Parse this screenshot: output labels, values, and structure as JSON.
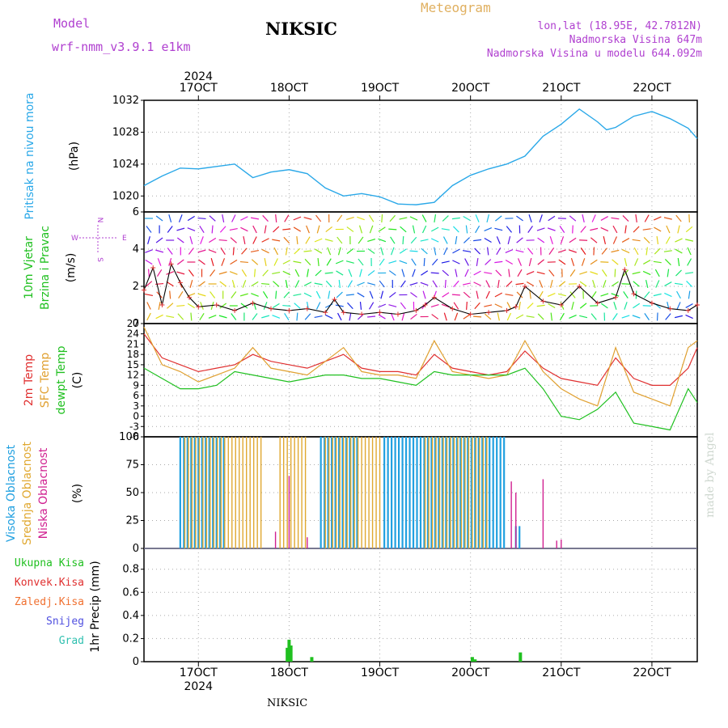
{
  "header": {
    "model_label": "Model",
    "model_name": "wrf-nmm_v3.9.1 e1km",
    "station": "NIKSIC",
    "meteogram": "Meteogram",
    "lonlat": "lon,lat (18.95E, 42.7812N)",
    "altitude": "Nadmorska Visina 647m",
    "altitude_model": "Nadmorska Visina u modelu 644.092m",
    "footer_station": "NIKSIC",
    "watermark": "made by Angel"
  },
  "colors": {
    "pressure": "#2aa8e8",
    "temp2m": "#e03030",
    "sfc": "#e0a030",
    "dew": "#20c020",
    "high": "#20a0e0",
    "mid": "#e0a830",
    "low": "#d02090",
    "precip": "#20c020",
    "violet": "#b040d0"
  },
  "chart_data": [
    {
      "type": "line",
      "panel": "pressure",
      "ylabel": [
        "Pritisak na nivou mora",
        "(hPa)"
      ],
      "yticks": [
        "1020",
        "1024",
        "1028",
        "1032"
      ],
      "ylim": [
        1018,
        1032
      ],
      "xlim": [
        16.4,
        22.5
      ],
      "x_top_labels": [
        "17OCT",
        "18OCT",
        "19OCT",
        "20OCT",
        "21OCT",
        "22OCT"
      ],
      "x_top_year": "2024",
      "series": [
        {
          "x": [
            16.4,
            16.6,
            16.8,
            17.0,
            17.2,
            17.4,
            17.6,
            17.8,
            18.0,
            18.2,
            18.4,
            18.6,
            18.8,
            19.0,
            19.2,
            19.4,
            19.6,
            19.8,
            20.0,
            20.2,
            20.4,
            20.6,
            20.8,
            21.0,
            21.2,
            21.4,
            21.5,
            21.6,
            21.8,
            22.0,
            22.2,
            22.4,
            22.5
          ],
          "values": [
            1021.3,
            1022.5,
            1023.5,
            1023.4,
            1023.7,
            1024.0,
            1022.3,
            1023.0,
            1023.3,
            1022.8,
            1021.0,
            1020.0,
            1020.3,
            1019.9,
            1019.0,
            1018.9,
            1019.2,
            1021.3,
            1022.6,
            1023.4,
            1024.0,
            1025.0,
            1027.5,
            1029.0,
            1030.9,
            1029.3,
            1028.3,
            1028.6,
            1030.0,
            1030.6,
            1029.7,
            1028.5,
            1027.2
          ]
        }
      ]
    },
    {
      "type": "line",
      "panel": "wind",
      "ylabel": [
        "10m Vjetar",
        "Brzina i Pravac",
        "(m/s)"
      ],
      "yticks": [
        "0",
        "2",
        "4",
        "6"
      ],
      "ylim": [
        0,
        6
      ],
      "xlim": [
        16.4,
        22.5
      ],
      "compass": [
        "N",
        "W",
        "E",
        "S"
      ],
      "series": [
        {
          "x": [
            16.4,
            16.5,
            16.6,
            16.7,
            16.8,
            16.9,
            17.0,
            17.2,
            17.4,
            17.6,
            17.8,
            18.0,
            18.2,
            18.4,
            18.5,
            18.6,
            18.8,
            19.0,
            19.2,
            19.4,
            19.5,
            19.6,
            19.8,
            20.0,
            20.2,
            20.4,
            20.5,
            20.6,
            20.8,
            21.0,
            21.2,
            21.4,
            21.6,
            21.7,
            21.8,
            22.0,
            22.2,
            22.4,
            22.5
          ],
          "values": [
            1.8,
            3.0,
            1.0,
            3.2,
            2.2,
            1.4,
            0.9,
            1.0,
            0.7,
            1.1,
            0.8,
            0.7,
            0.8,
            0.6,
            1.3,
            0.6,
            0.5,
            0.6,
            0.5,
            0.7,
            1.0,
            1.4,
            0.8,
            0.5,
            0.6,
            0.7,
            0.9,
            2.0,
            1.2,
            1.0,
            2.0,
            1.1,
            1.4,
            2.9,
            1.6,
            1.1,
            0.8,
            0.7,
            1.0
          ]
        }
      ]
    },
    {
      "type": "line",
      "panel": "temperature",
      "ylabel": [
        "2m Temp",
        "SFC Temp",
        "dewpt Temp",
        "(C)"
      ],
      "yticks": [
        "-6",
        "-3",
        "0",
        "3",
        "6",
        "9",
        "12",
        "15",
        "18",
        "21",
        "24",
        "27"
      ],
      "ylim": [
        -6,
        27
      ],
      "xlim": [
        16.4,
        22.5
      ],
      "series": [
        {
          "name": "2m Temp",
          "x": [
            16.4,
            16.6,
            16.8,
            17.0,
            17.2,
            17.4,
            17.6,
            17.8,
            18.0,
            18.2,
            18.4,
            18.6,
            18.8,
            19.0,
            19.2,
            19.4,
            19.6,
            19.8,
            20.0,
            20.2,
            20.4,
            20.6,
            20.8,
            21.0,
            21.2,
            21.4,
            21.6,
            21.8,
            22.0,
            22.2,
            22.4,
            22.5
          ],
          "values": [
            24,
            17,
            15,
            13,
            14,
            15,
            18,
            16,
            15,
            14,
            16,
            18,
            14,
            13,
            13,
            12,
            18,
            14,
            13,
            12,
            13,
            19,
            14,
            11,
            10,
            9,
            17,
            11,
            9,
            9,
            14,
            20
          ]
        },
        {
          "name": "SFC Temp",
          "x": [
            16.4,
            16.6,
            16.8,
            17.0,
            17.2,
            17.4,
            17.6,
            17.8,
            18.0,
            18.2,
            18.4,
            18.6,
            18.8,
            19.0,
            19.2,
            19.4,
            19.6,
            19.8,
            20.0,
            20.2,
            20.4,
            20.6,
            20.8,
            21.0,
            21.2,
            21.4,
            21.6,
            21.8,
            22.0,
            22.2,
            22.4,
            22.5
          ],
          "values": [
            26,
            15,
            13,
            10,
            12,
            14,
            20,
            14,
            13,
            12,
            16,
            20,
            13,
            12,
            12,
            11,
            22,
            13,
            12,
            11,
            12,
            22,
            13,
            8,
            5,
            3,
            20,
            7,
            5,
            3,
            20,
            22
          ]
        },
        {
          "name": "dewpt Temp",
          "x": [
            16.4,
            16.6,
            16.8,
            17.0,
            17.2,
            17.4,
            17.6,
            17.8,
            18.0,
            18.2,
            18.4,
            18.6,
            18.8,
            19.0,
            19.2,
            19.4,
            19.6,
            19.8,
            20.0,
            20.2,
            20.4,
            20.6,
            20.8,
            21.0,
            21.2,
            21.4,
            21.6,
            21.8,
            22.0,
            22.2,
            22.4,
            22.5
          ],
          "values": [
            14,
            11,
            8,
            8,
            9,
            13,
            12,
            11,
            10,
            11,
            12,
            12,
            11,
            11,
            10,
            9,
            13,
            12,
            12,
            12,
            12,
            14,
            8,
            0,
            -1,
            2,
            7,
            -2,
            -3,
            -4,
            8,
            4
          ]
        }
      ]
    },
    {
      "type": "bar",
      "panel": "cloud",
      "ylabel": [
        "Visoka Oblacnost",
        "Srednja Oblacnost",
        "Niska Oblacnost",
        "(%)"
      ],
      "yticks": [
        "0",
        "25",
        "50",
        "75",
        "100"
      ],
      "ylim": [
        0,
        100
      ],
      "xlim": [
        16.4,
        22.5
      ],
      "series": [
        {
          "name": "Visoka Oblacnost",
          "segments": [
            [
              16.8,
              17.3
            ],
            [
              18.35,
              18.75
            ],
            [
              19.05,
              20.4
            ],
            [
              20.5,
              20.55
            ]
          ],
          "values": [
            100,
            100,
            100,
            20
          ]
        },
        {
          "name": "Srednja Oblacnost",
          "segments": [
            [
              16.85,
              17.7
            ],
            [
              17.9,
              18.2
            ],
            [
              18.4,
              19.0
            ],
            [
              19.5,
              20.2
            ]
          ],
          "values": [
            100,
            100,
            100,
            100
          ]
        },
        {
          "name": "Niska Oblacnost",
          "points": [
            [
              17.85,
              15
            ],
            [
              18.0,
              65
            ],
            [
              18.2,
              10
            ],
            [
              20.45,
              60
            ],
            [
              20.5,
              50
            ],
            [
              20.8,
              62
            ],
            [
              20.95,
              7
            ],
            [
              21.0,
              8
            ]
          ]
        }
      ]
    },
    {
      "type": "bar",
      "panel": "precip",
      "ylabel": [
        "1hr Precip (mm)"
      ],
      "legend": [
        "Ukupna Kisa",
        "Konvek.Kisa",
        "Zaledj.Kisa",
        "Snijeg",
        "Grad"
      ],
      "yticks": [
        "0",
        "0.2",
        "0.4",
        "0.6",
        "0.8"
      ],
      "ylim": [
        0,
        0.98
      ],
      "xlim": [
        16.4,
        22.5
      ],
      "x_bottom_labels": [
        "17OCT",
        "18OCT",
        "19OCT",
        "20OCT",
        "21OCT",
        "22OCT"
      ],
      "x_bottom_year": "2024",
      "x": [
        17.98,
        18.0,
        18.02,
        18.25,
        20.02,
        20.05,
        20.55
      ],
      "values": [
        0.12,
        0.19,
        0.14,
        0.04,
        0.04,
        0.02,
        0.08
      ]
    }
  ]
}
